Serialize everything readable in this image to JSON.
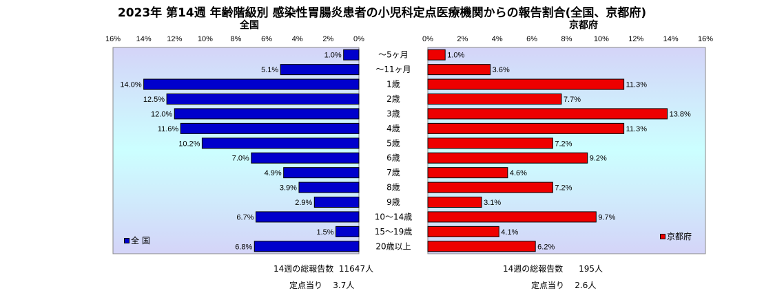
{
  "title": "2023年 第14週  年齢階級別 感染性胃腸炎患者の小児科定点医療機関からの報告割合(全国、京都府)",
  "colors": {
    "national": "#0000cc",
    "kyoto": "#ee0000",
    "plot_bg_edge": "#d4d4f8",
    "plot_bg_mid": "#ccffff"
  },
  "chart_data": [
    {
      "type": "bar",
      "subtitle": "全国",
      "legend": "全 国",
      "legend_position": "bottom-left",
      "xlim": [
        16,
        0
      ],
      "xticks": [
        "16%",
        "14%",
        "12%",
        "10%",
        "8%",
        "6%",
        "4%",
        "2%",
        "0%"
      ],
      "categories": [
        "～5ヶ月",
        "～11ヶ月",
        "1歳",
        "2歳",
        "3歳",
        "4歳",
        "5歳",
        "6歳",
        "7歳",
        "8歳",
        "9歳",
        "10～14歳",
        "15～19歳",
        "20歳以上"
      ],
      "values": [
        1.0,
        5.1,
        14.0,
        12.5,
        12.0,
        11.6,
        10.2,
        7.0,
        4.9,
        3.9,
        2.9,
        6.7,
        1.5,
        6.8
      ],
      "value_labels": [
        "1.0%",
        "5.1%",
        "14.0%",
        "12.5%",
        "12.0%",
        "11.6%",
        "10.2%",
        "7.0%",
        "4.9%",
        "3.9%",
        "2.9%",
        "6.7%",
        "1.5%",
        "6.8%"
      ]
    },
    {
      "type": "bar",
      "subtitle": "京都府",
      "legend": "京都府",
      "legend_position": "bottom-right",
      "xlim": [
        0,
        16
      ],
      "xticks": [
        "0%",
        "2%",
        "4%",
        "6%",
        "8%",
        "10%",
        "12%",
        "14%",
        "16%"
      ],
      "categories": [
        "～5ヶ月",
        "～11ヶ月",
        "1歳",
        "2歳",
        "3歳",
        "4歳",
        "5歳",
        "6歳",
        "7歳",
        "8歳",
        "9歳",
        "10～14歳",
        "15～19歳",
        "20歳以上"
      ],
      "values": [
        1.0,
        3.6,
        11.3,
        7.7,
        13.8,
        11.3,
        7.2,
        9.2,
        4.6,
        7.2,
        3.1,
        9.7,
        4.1,
        6.2
      ],
      "value_labels": [
        "1.0%",
        "3.6%",
        "11.3%",
        "7.7%",
        "13.8%",
        "11.3%",
        "7.2%",
        "9.2%",
        "4.6%",
        "7.2%",
        "3.1%",
        "9.7%",
        "4.1%",
        "6.2%"
      ]
    }
  ],
  "footer": {
    "national_total": "14週の総報告数  11647人",
    "national_per": "定点当り    3.7人",
    "kyoto_total": "14週の総報告数      195人",
    "kyoto_per": "定点当り    2.6人"
  }
}
